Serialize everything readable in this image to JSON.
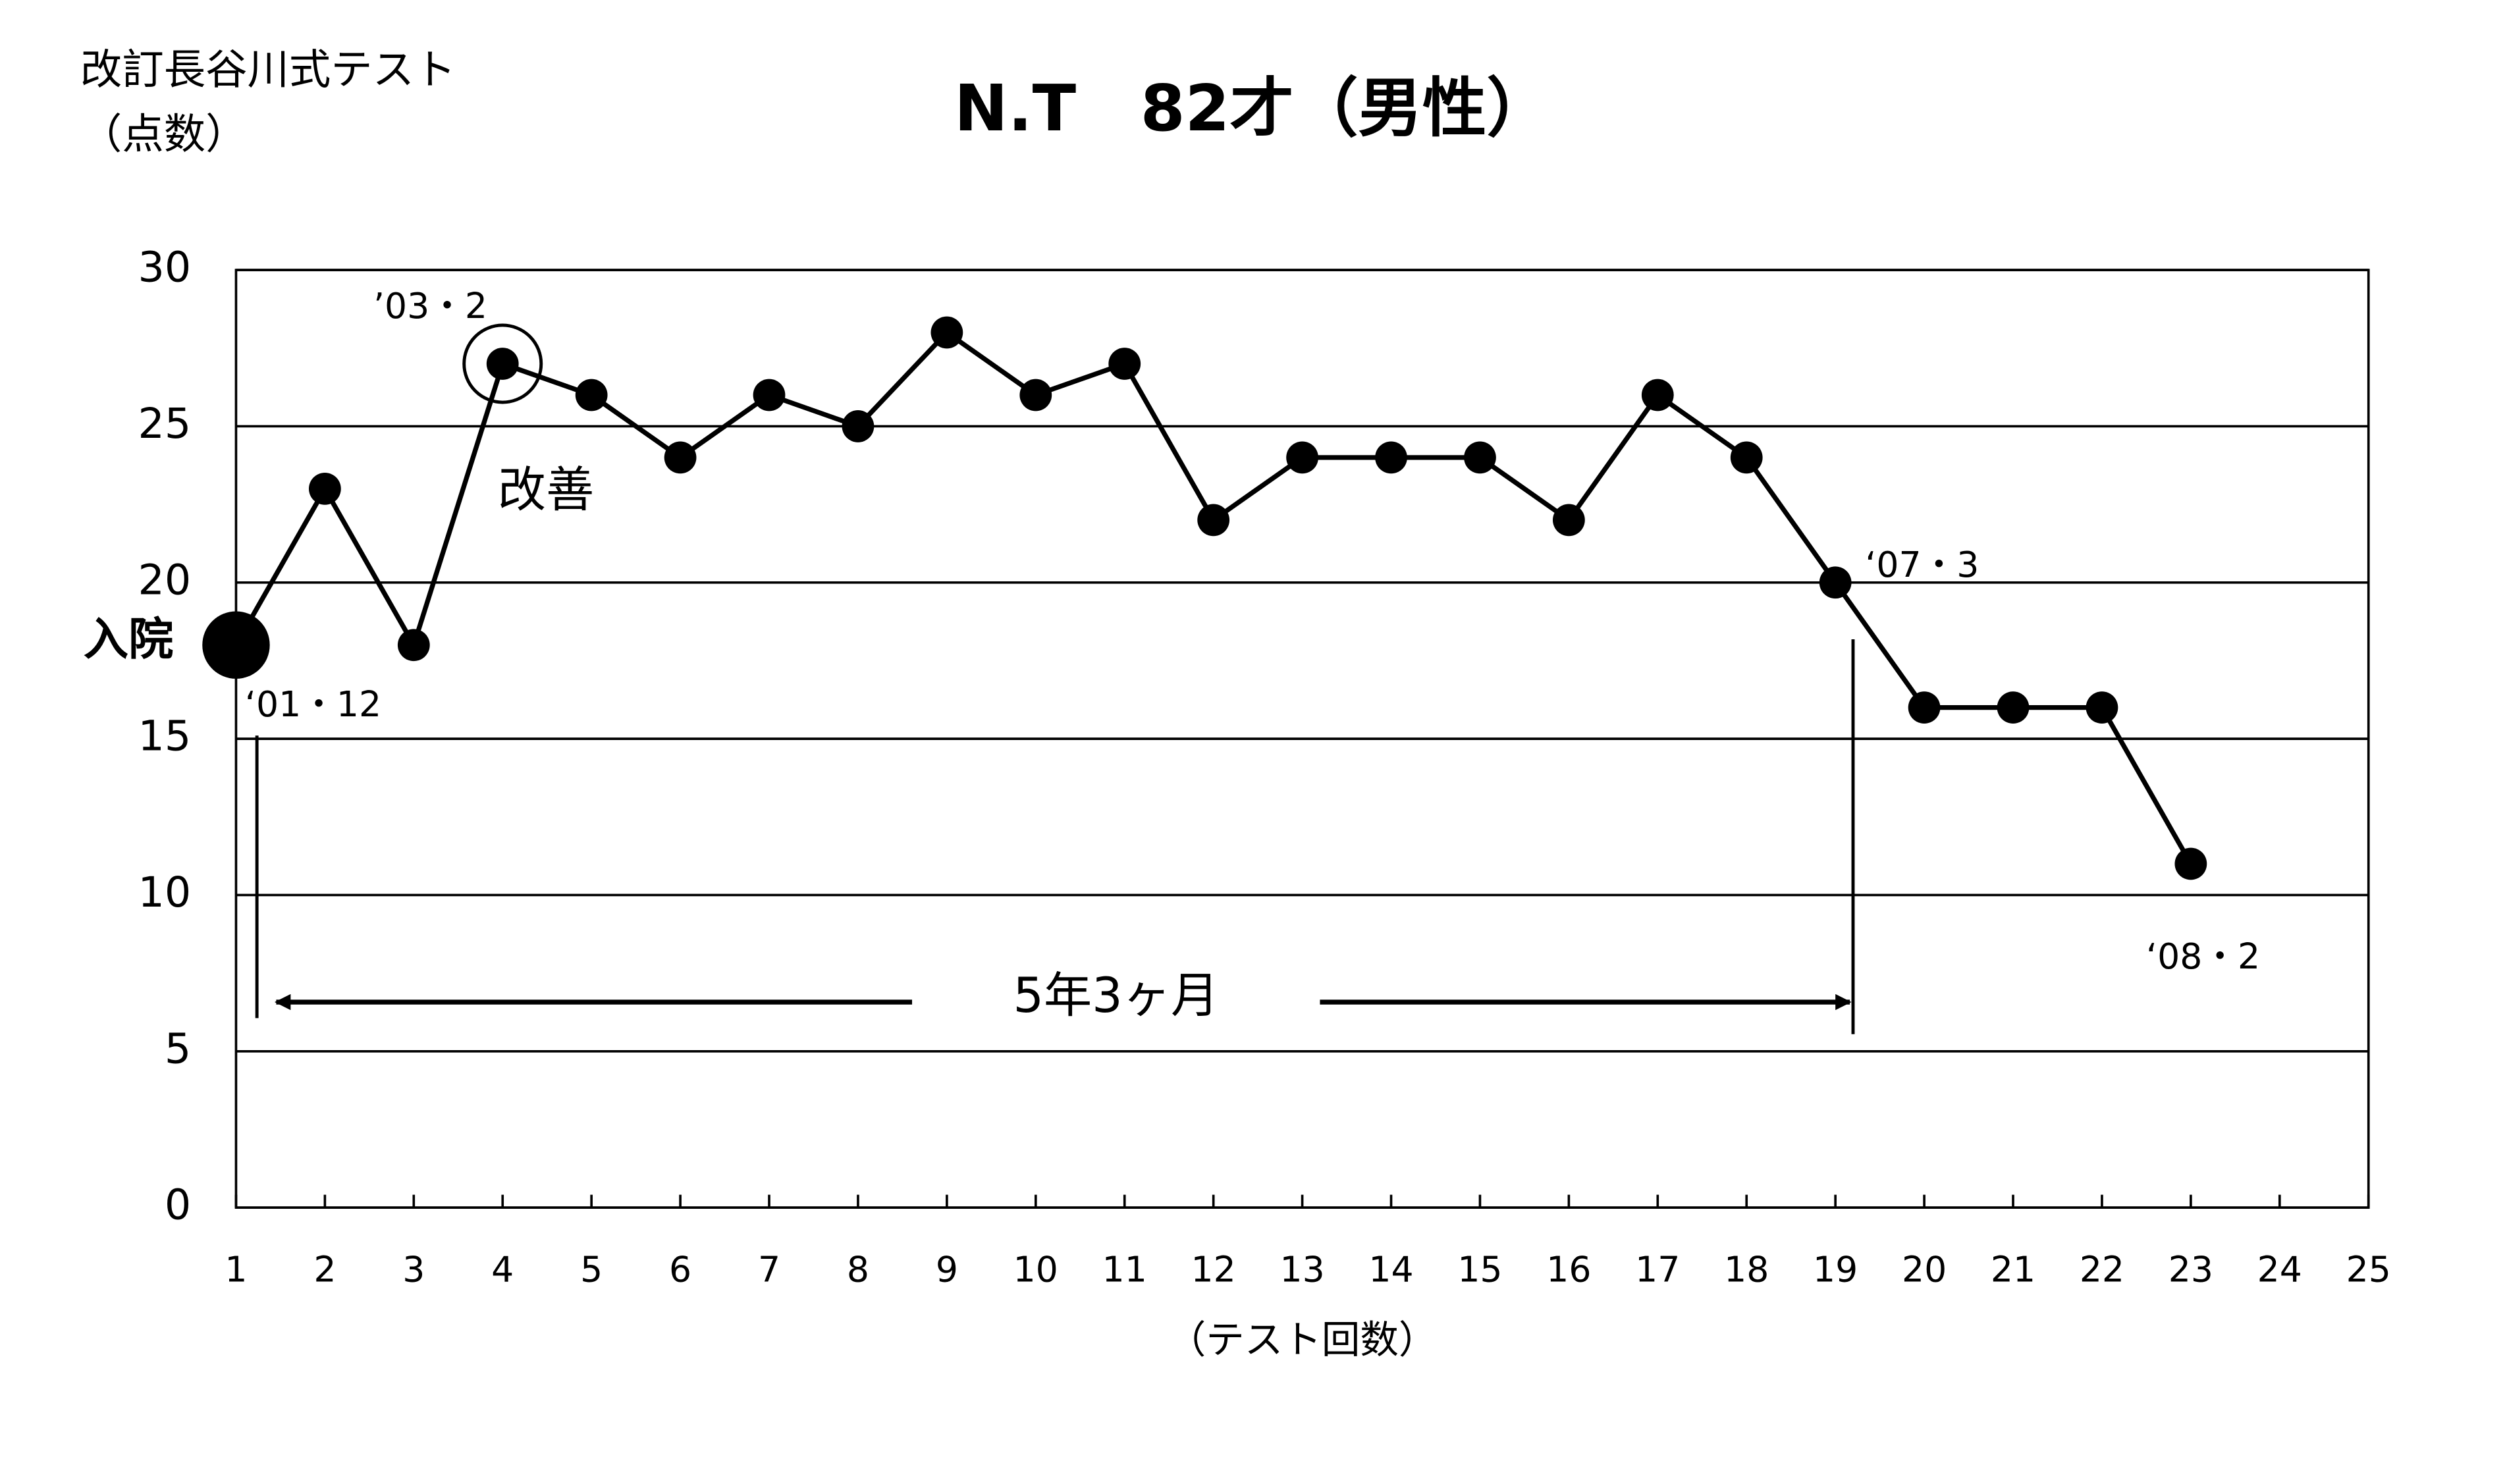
{
  "chart_data": {
    "type": "line",
    "title": "N.T　82才（男性）",
    "y_label_lines": [
      "改訂長谷川式テスト",
      "（点数）"
    ],
    "x_label": "（テスト回数）",
    "x": [
      1,
      2,
      3,
      4,
      5,
      6,
      7,
      8,
      9,
      10,
      11,
      12,
      13,
      14,
      15,
      16,
      17,
      18,
      19,
      20,
      21,
      22,
      23
    ],
    "values": [
      18,
      23,
      18,
      27,
      26,
      24,
      26,
      25,
      28,
      26,
      27,
      22,
      24,
      24,
      24,
      22,
      26,
      24,
      20,
      16,
      16,
      16,
      11
    ],
    "color": "#000000",
    "xlim": [
      1,
      25
    ],
    "xticks": [
      1,
      2,
      3,
      4,
      5,
      6,
      7,
      8,
      9,
      10,
      11,
      12,
      13,
      14,
      15,
      16,
      17,
      18,
      19,
      20,
      21,
      22,
      23,
      24,
      25
    ],
    "ylim": [
      0,
      30
    ],
    "yticks": [
      0,
      5,
      10,
      15,
      20,
      25,
      30
    ],
    "grid": true,
    "annotations": [
      "’03・2",
      "改善",
      "入院",
      "‘01・12",
      "‘07・3",
      "‘08・2",
      "5年3ヶ月"
    ]
  }
}
